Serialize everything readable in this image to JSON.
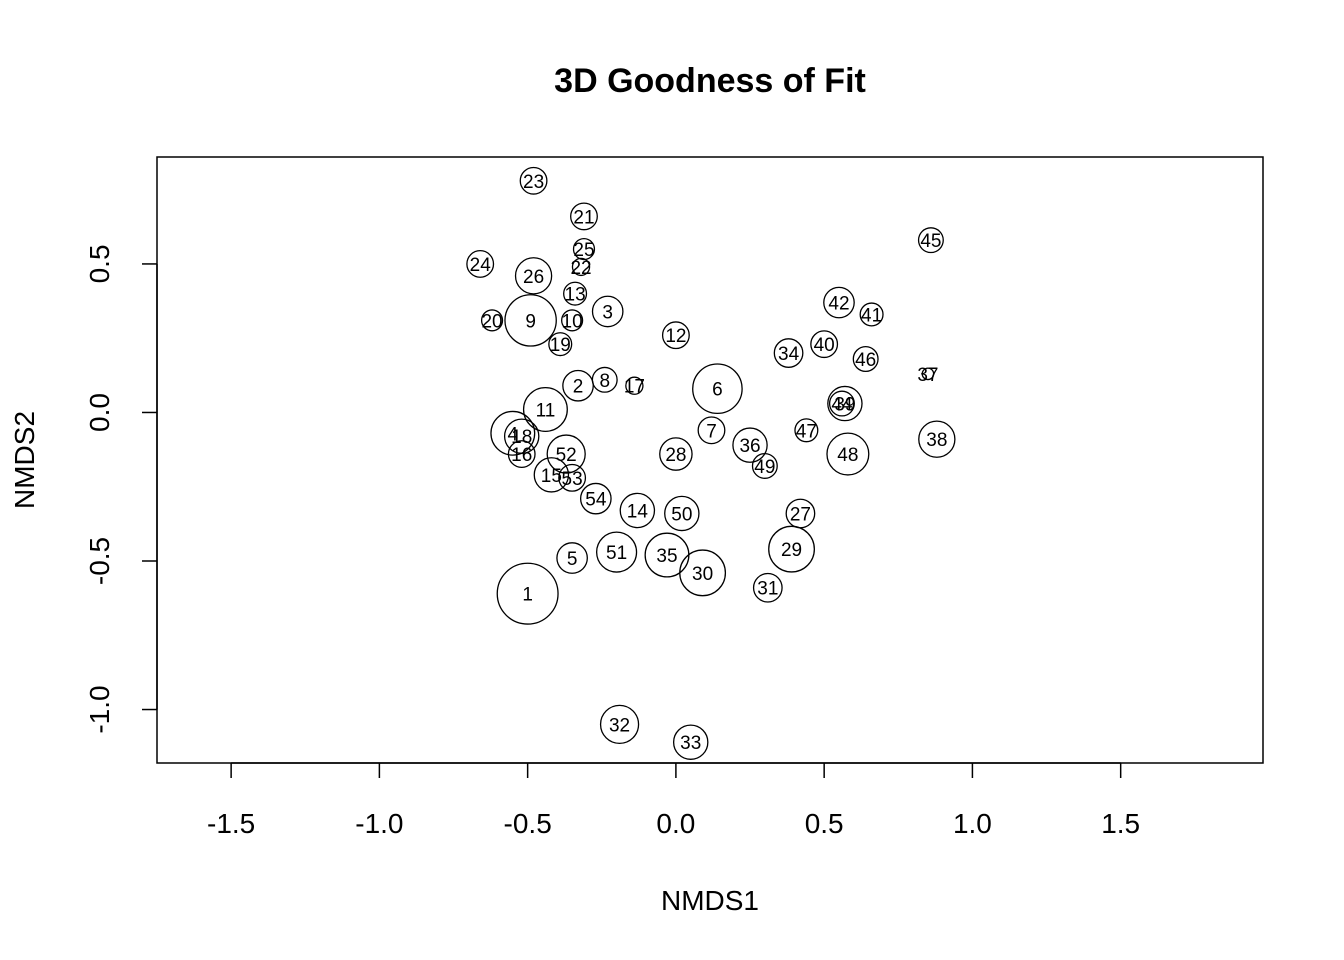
{
  "chart_data": {
    "type": "scatter",
    "title": "3D Goodness of Fit",
    "xlabel": "NMDS1",
    "ylabel": "NMDS2",
    "xlim": [
      -1.75,
      1.98
    ],
    "ylim": [
      -1.18,
      0.86
    ],
    "xticks": [
      -1.5,
      -1.0,
      -0.5,
      0.0,
      0.5,
      1.0,
      1.5
    ],
    "xtick_labels": [
      "-1.5",
      "-1.0",
      "-0.5",
      "0.0",
      "0.5",
      "1.0",
      "1.5"
    ],
    "yticks": [
      -1.0,
      -0.5,
      0.0,
      0.5
    ],
    "ytick_labels": [
      "-1.0",
      "-0.5",
      "0.0",
      "0.5"
    ],
    "grid": false,
    "marker": "open-circle",
    "note_size": "circle size proportional to goodness of fit",
    "points": [
      {
        "label": "1",
        "x": -0.5,
        "y": -0.61,
        "size": 3.2
      },
      {
        "label": "2",
        "x": -0.33,
        "y": 0.09,
        "size": 1.6
      },
      {
        "label": "3",
        "x": -0.23,
        "y": 0.34,
        "size": 1.6
      },
      {
        "label": "5",
        "x": -0.35,
        "y": -0.49,
        "size": 1.6
      },
      {
        "label": "6",
        "x": 0.14,
        "y": 0.08,
        "size": 2.6
      },
      {
        "label": "7",
        "x": 0.12,
        "y": -0.06,
        "size": 1.4
      },
      {
        "label": "8",
        "x": -0.24,
        "y": 0.11,
        "size": 1.3
      },
      {
        "label": "9",
        "x": -0.49,
        "y": 0.31,
        "size": 2.7
      },
      {
        "label": "10",
        "x": -0.35,
        "y": 0.31,
        "size": 1.1
      },
      {
        "label": "11",
        "x": -0.44,
        "y": 0.01,
        "size": 2.3
      },
      {
        "label": "12",
        "x": 0.0,
        "y": 0.26,
        "size": 1.4
      },
      {
        "label": "13",
        "x": -0.34,
        "y": 0.4,
        "size": 1.2
      },
      {
        "label": "14",
        "x": -0.13,
        "y": -0.33,
        "size": 1.8
      },
      {
        "label": "15",
        "x": -0.42,
        "y": -0.21,
        "size": 1.8
      },
      {
        "label": "16",
        "x": -0.52,
        "y": -0.14,
        "size": 1.4
      },
      {
        "label": "17",
        "x": -0.14,
        "y": 0.09,
        "size": 0.9
      },
      {
        "label": "18",
        "x": -0.52,
        "y": -0.08,
        "size": 1.8
      },
      {
        "label": "19",
        "x": -0.39,
        "y": 0.23,
        "size": 1.2
      },
      {
        "label": "20",
        "x": -0.62,
        "y": 0.31,
        "size": 1.1
      },
      {
        "label": "21",
        "x": -0.31,
        "y": 0.66,
        "size": 1.4
      },
      {
        "label": "22",
        "x": -0.32,
        "y": 0.49,
        "size": 0.9
      },
      {
        "label": "23",
        "x": -0.48,
        "y": 0.78,
        "size": 1.4
      },
      {
        "label": "24",
        "x": -0.66,
        "y": 0.5,
        "size": 1.4
      },
      {
        "label": "25",
        "x": -0.31,
        "y": 0.55,
        "size": 1.1
      },
      {
        "label": "26",
        "x": -0.48,
        "y": 0.46,
        "size": 1.9
      },
      {
        "label": "27",
        "x": 0.42,
        "y": -0.34,
        "size": 1.5
      },
      {
        "label": "28",
        "x": 0.0,
        "y": -0.14,
        "size": 1.7
      },
      {
        "label": "29",
        "x": 0.39,
        "y": -0.46,
        "size": 2.4
      },
      {
        "label": "30",
        "x": 0.09,
        "y": -0.54,
        "size": 2.4
      },
      {
        "label": "31",
        "x": 0.31,
        "y": -0.59,
        "size": 1.5
      },
      {
        "label": "32",
        "x": -0.19,
        "y": -1.05,
        "size": 2.0
      },
      {
        "label": "33",
        "x": 0.05,
        "y": -1.11,
        "size": 1.8
      },
      {
        "label": "34",
        "x": 0.38,
        "y": 0.2,
        "size": 1.5
      },
      {
        "label": "35",
        "x": -0.03,
        "y": -0.48,
        "size": 2.3
      },
      {
        "label": "36",
        "x": 0.25,
        "y": -0.11,
        "size": 1.8
      },
      {
        "label": "37",
        "x": 0.85,
        "y": 0.13,
        "size": 0.6
      },
      {
        "label": "38",
        "x": 0.88,
        "y": -0.09,
        "size": 1.9
      },
      {
        "label": "39",
        "x": 0.57,
        "y": 0.03,
        "size": 1.8
      },
      {
        "label": "40",
        "x": 0.5,
        "y": 0.23,
        "size": 1.4
      },
      {
        "label": "41",
        "x": 0.66,
        "y": 0.33,
        "size": 1.2
      },
      {
        "label": "42",
        "x": 0.55,
        "y": 0.37,
        "size": 1.6
      },
      {
        "label": "44",
        "x": 0.56,
        "y": 0.03,
        "size": 1.3
      },
      {
        "label": "45",
        "x": 0.86,
        "y": 0.58,
        "size": 1.3
      },
      {
        "label": "46",
        "x": 0.64,
        "y": 0.18,
        "size": 1.3
      },
      {
        "label": "47",
        "x": 0.44,
        "y": -0.06,
        "size": 1.2
      },
      {
        "label": "48",
        "x": 0.58,
        "y": -0.14,
        "size": 2.2
      },
      {
        "label": "49",
        "x": 0.3,
        "y": -0.18,
        "size": 1.3
      },
      {
        "label": "50",
        "x": 0.02,
        "y": -0.34,
        "size": 1.8
      },
      {
        "label": "51",
        "x": -0.2,
        "y": -0.47,
        "size": 2.1
      },
      {
        "label": "52",
        "x": -0.37,
        "y": -0.14,
        "size": 2.0
      },
      {
        "label": "53",
        "x": -0.35,
        "y": -0.22,
        "size": 1.4
      },
      {
        "label": "54",
        "x": -0.27,
        "y": -0.29,
        "size": 1.6
      },
      {
        "label": "4",
        "x": -0.55,
        "y": -0.07,
        "size": 2.3
      }
    ]
  }
}
